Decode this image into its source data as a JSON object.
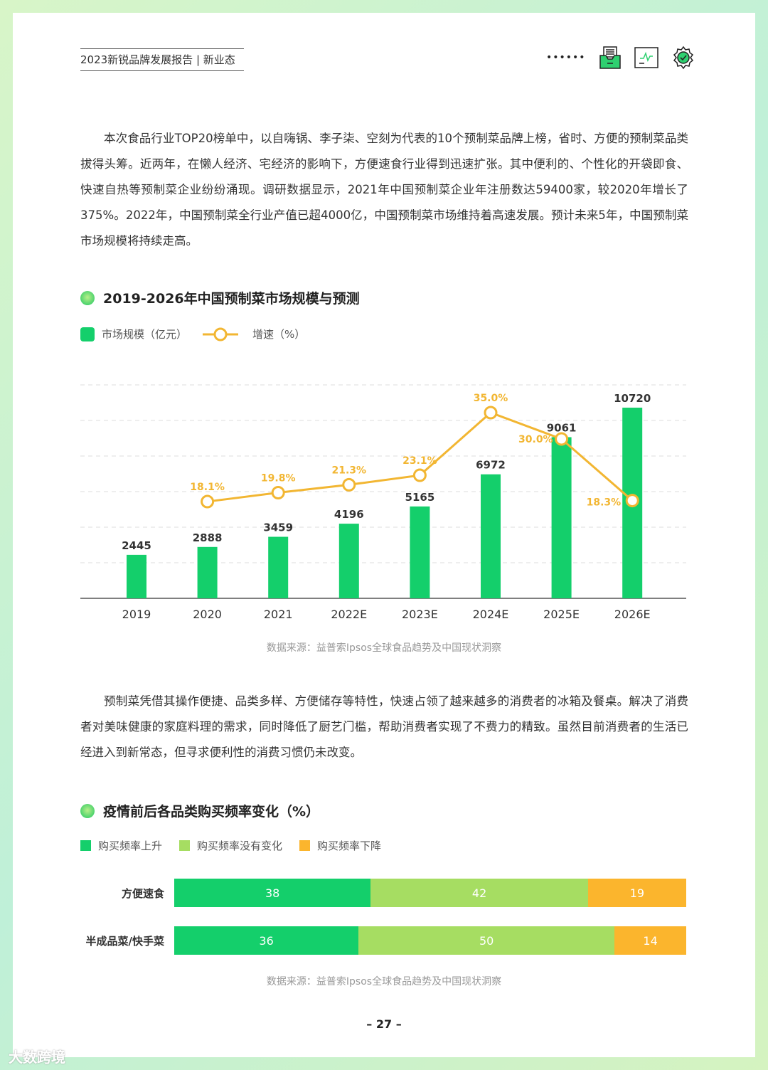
{
  "header": {
    "title": "2023新锐品牌发展报告 | 新业态",
    "dots": "••••••",
    "icons": [
      "inbox-tray-icon",
      "chart-monitor-icon",
      "gear-check-icon"
    ]
  },
  "paragraphs": [
    "本次食品行业TOP20榜单中，以自嗨锅、李子柒、空刻为代表的10个预制菜品牌上榜，省时、方便的预制菜品类拔得头筹。近两年，在懒人经济、宅经济的影响下，方便速食行业得到迅速扩张。其中便利的、个性化的开袋即食、快速自热等预制菜企业纷纷涌现。调研数据显示，2021年中国预制菜企业年注册数达59400家，较2020年增长了375%。2022年，中国预制菜全行业产值已超4000亿，中国预制菜市场维持着高速发展。预计未来5年，中国预制菜市场规模将持续走高。",
    "预制菜凭借其操作便捷、品类多样、方便储存等特性，快速占领了越来越多的消费者的冰箱及餐桌。解决了消费者对美味健康的家庭料理的需求，同时降低了厨艺门槛，帮助消费者实现了不费力的精致。虽然目前消费者的生活已经进入到新常态，但寻求便利性的消费习惯仍未改变。"
  ],
  "chart_data": [
    {
      "type": "bar+line",
      "title": "2019-2026年中国预制菜市场规模与预测",
      "categories": [
        "2019",
        "2020",
        "2021",
        "2022E",
        "2023E",
        "2024E",
        "2025E",
        "2026E"
      ],
      "series": [
        {
          "name": "市场规模（亿元）",
          "type": "bar",
          "color": "#14cf6b",
          "values": [
            2445,
            2888,
            3459,
            4196,
            5165,
            6972,
            9061,
            10720
          ]
        },
        {
          "name": "增速（%）",
          "type": "line",
          "color": "#f2b632",
          "values": [
            null,
            18.1,
            19.8,
            21.3,
            23.1,
            35.0,
            30.0,
            18.3
          ],
          "labels": [
            "",
            "18.1%",
            "19.8%",
            "21.3%",
            "23.1%",
            "35.0%",
            "30.0%",
            "18.3%"
          ]
        }
      ],
      "ylim": [
        0,
        12000
      ],
      "grid": true,
      "legend": "top-left",
      "source": "数据来源：益普索Ipsos全球食品趋势及中国现状洞察"
    },
    {
      "type": "stacked-bar-horizontal",
      "title": "疫情前后各品类购买频率变化（%）",
      "categories": [
        "方便速食",
        "半成品菜/快手菜"
      ],
      "series": [
        {
          "name": "购买频率上升",
          "color": "#14cf6b",
          "values": [
            38,
            36
          ]
        },
        {
          "name": "购买频率没有变化",
          "color": "#a6dd62",
          "values": [
            42,
            50
          ]
        },
        {
          "name": "购买频率下降",
          "color": "#fbb52d",
          "values": [
            19,
            14
          ]
        }
      ],
      "legend": "top-left",
      "source": "数据来源：益普索Ipsos全球食品趋势及中国现状洞察"
    }
  ],
  "page_number": "– 27 –",
  "watermark": "大数跨境"
}
